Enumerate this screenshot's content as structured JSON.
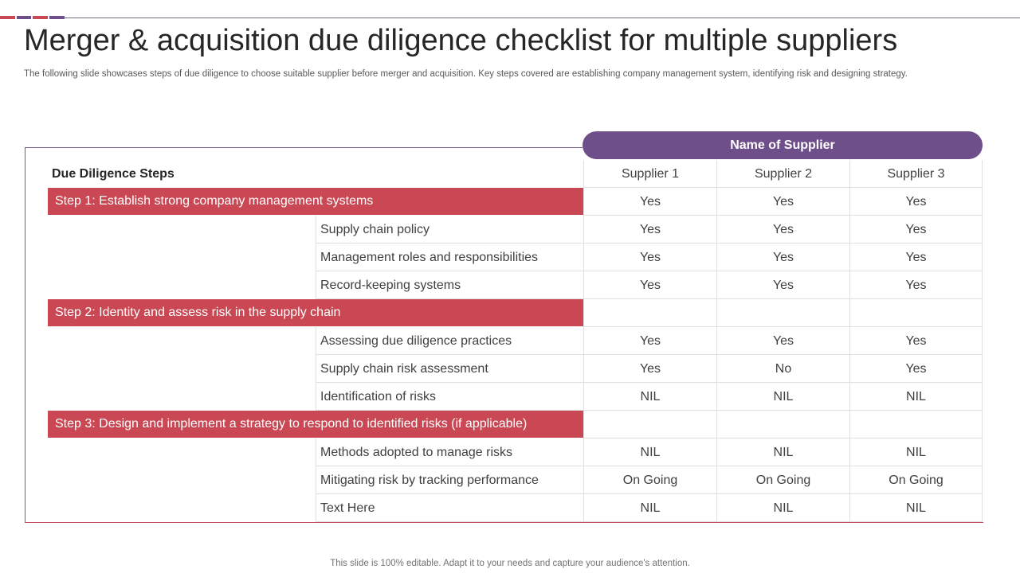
{
  "colors": {
    "accent_red": "#c94854",
    "accent_purple": "#6e4f8a"
  },
  "title": "Merger & acquisition due diligence checklist for multiple suppliers",
  "subtitle": "The following slide showcases steps of due diligence to choose suitable supplier before merger and acquisition. Key steps covered are establishing company management system, identifying risk and designing strategy.",
  "table": {
    "supplier_group_header": "Name of Supplier",
    "steps_header": "Due Diligence Steps",
    "suppliers": [
      "Supplier 1",
      "Supplier 2",
      "Supplier 3"
    ],
    "rows": [
      {
        "type": "step",
        "label": "Step 1: Establish strong company management systems",
        "values": [
          "Yes",
          "Yes",
          "Yes"
        ]
      },
      {
        "type": "item",
        "label": "Supply chain policy",
        "values": [
          "Yes",
          "Yes",
          "Yes"
        ]
      },
      {
        "type": "item",
        "label": "Management roles and responsibilities",
        "values": [
          "Yes",
          "Yes",
          "Yes"
        ]
      },
      {
        "type": "item",
        "label": "Record-keeping systems",
        "values": [
          "Yes",
          "Yes",
          "Yes"
        ]
      },
      {
        "type": "step",
        "label": "Step 2: Identity  and assess risk in the supply chain",
        "values": [
          "",
          "",
          ""
        ]
      },
      {
        "type": "item",
        "label": "Assessing due diligence practices",
        "values": [
          "Yes",
          "Yes",
          "Yes"
        ]
      },
      {
        "type": "item",
        "label": "Supply chain risk assessment",
        "values": [
          "Yes",
          "No",
          "Yes"
        ]
      },
      {
        "type": "item",
        "label": "Identification  of risks",
        "values": [
          "NIL",
          "NIL",
          "NIL"
        ]
      },
      {
        "type": "step",
        "label": "Step 3: Design and implement  a strategy  to respond to identified risks (if applicable)",
        "values": [
          "",
          "",
          ""
        ]
      },
      {
        "type": "item",
        "label": "Methods adopted to manage risks",
        "values": [
          "NIL",
          "NIL",
          "NIL"
        ]
      },
      {
        "type": "item",
        "label": "Mitigating risk by tracking performance",
        "values": [
          "On Going",
          "On Going",
          "On Going"
        ]
      },
      {
        "type": "item",
        "label": "Text Here",
        "values": [
          "NIL",
          "NIL",
          "NIL"
        ]
      }
    ]
  },
  "footer": "This slide is 100% editable. Adapt it to your needs and capture your audience's attention."
}
